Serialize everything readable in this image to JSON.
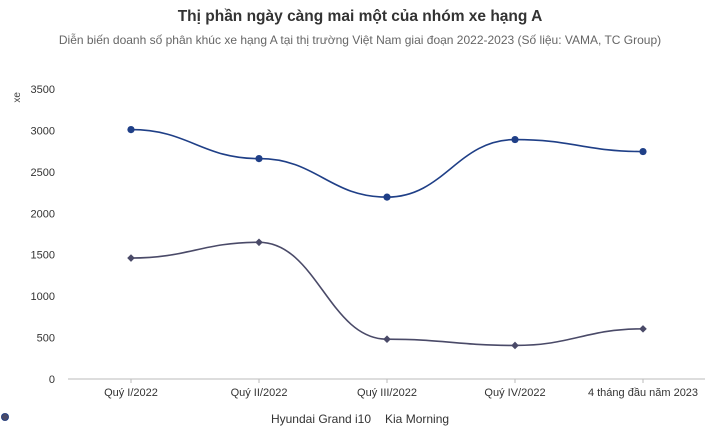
{
  "chart_data": {
    "type": "line",
    "title": "Thị phần ngày càng mai một của nhóm xe hạng A",
    "subtitle": "Diễn biến doanh số phân khúc xe hạng A tại thị trường Việt Nam giai đoạn 2022-2023 (Số liệu: VAMA, TC Group)",
    "ylabel": "xe",
    "xlabel": "",
    "categories": [
      "Quý I/2022",
      "Quý II/2022",
      "Quý III/2022",
      "Quý IV/2022",
      "4 tháng đầu năm 2023"
    ],
    "ylim": [
      0,
      3500
    ],
    "yticks": [
      0,
      500,
      1000,
      1500,
      2000,
      2500,
      3000,
      3500
    ],
    "grid": false,
    "legend_position": "bottom",
    "series": [
      {
        "name": "Hyundai Grand i10",
        "values": [
          3010,
          2660,
          2195,
          2890,
          2745
        ],
        "color": "#1f3f87",
        "marker": "circle"
      },
      {
        "name": "Kia Morning",
        "values": [
          1460,
          1650,
          480,
          405,
          605
        ],
        "color": "#4a4a68",
        "marker": "diamond"
      }
    ]
  }
}
